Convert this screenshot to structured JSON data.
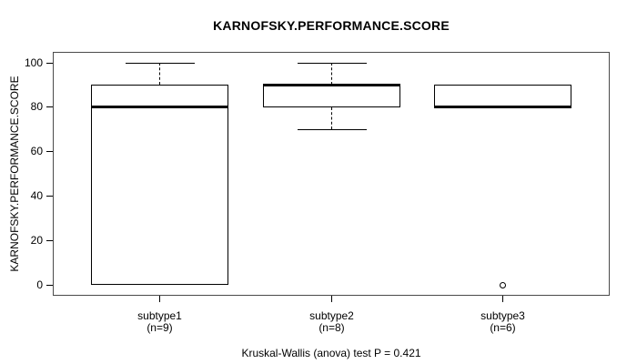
{
  "figure": {
    "background": "#ffffff"
  },
  "chart_data": {
    "type": "boxplot",
    "title": "KARNOFSKY.PERFORMANCE.SCORE",
    "ylabel": "KARNOFSKY.PERFORMANCE.SCORE",
    "xlabel": "",
    "caption": "Kruskal-Wallis (anova) test P = 0.421",
    "ylim": [
      0,
      100
    ],
    "yticks": [
      0,
      20,
      40,
      60,
      80,
      100
    ],
    "grid": false,
    "legend": "none",
    "groups": [
      {
        "label": "subtype1",
        "sublabel": "(n=9)",
        "n": 9,
        "q1": 0,
        "median": 80,
        "q3": 90,
        "whisker_low": 0,
        "whisker_high": 100,
        "outliers": []
      },
      {
        "label": "subtype2",
        "sublabel": "(n=8)",
        "n": 8,
        "q1": 80,
        "median": 90,
        "q3": 90,
        "whisker_low": 70,
        "whisker_high": 100,
        "outliers": []
      },
      {
        "label": "subtype3",
        "sublabel": "(n=6)",
        "n": 6,
        "q1": 80,
        "median": 80,
        "q3": 90,
        "whisker_low": 80,
        "whisker_high": 90,
        "outliers": [
          0
        ]
      }
    ],
    "colors": {
      "line": "#000000",
      "box_fill": "#ffffff",
      "frame": "#4a4a4a",
      "background": "#ffffff"
    }
  }
}
